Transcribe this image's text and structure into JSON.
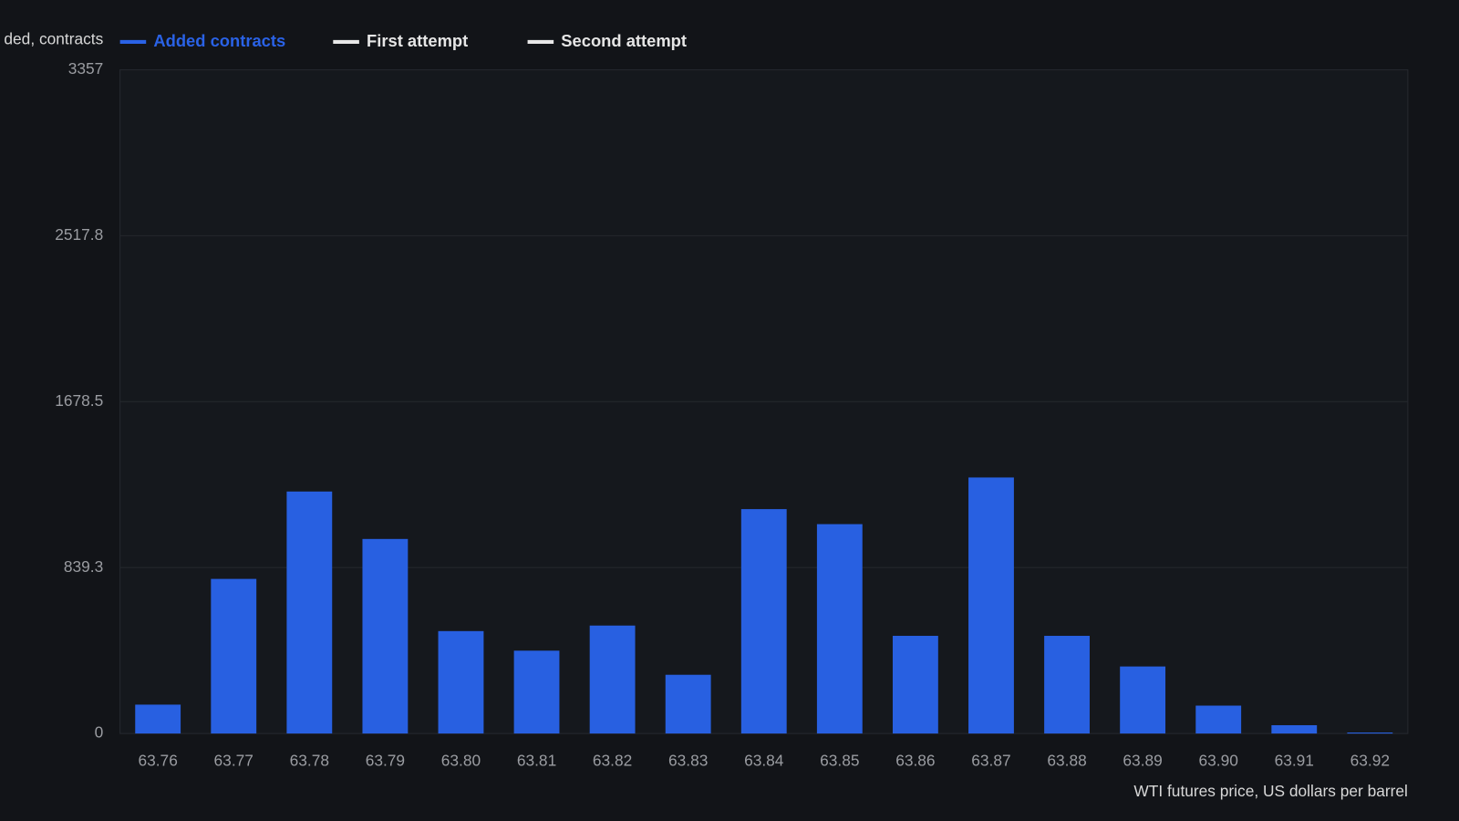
{
  "chart_data": {
    "type": "bar",
    "ylabel": "ded, contracts",
    "xlabel": "WTI futures price, US dollars per barrel",
    "legend": [
      {
        "name": "Added contracts",
        "color": "#2a62e6"
      },
      {
        "name": "First attempt",
        "color": "#e8e8e8"
      },
      {
        "name": "Second attempt",
        "color": "#e8e8e8"
      }
    ],
    "categories": [
      "63.76",
      "63.77",
      "63.78",
      "63.79",
      "63.80",
      "63.81",
      "63.82",
      "63.83",
      "63.84",
      "63.85",
      "63.86",
      "63.87",
      "63.88",
      "63.89",
      "63.90",
      "63.91",
      "63.92"
    ],
    "values": [
      146,
      782,
      1224,
      984,
      518,
      419,
      546,
      297,
      1135,
      1059,
      494,
      1295,
      494,
      339,
      141,
      42,
      5
    ],
    "color": "#2860e1",
    "ylim": [
      0,
      3357
    ],
    "yticks": [
      0,
      839.3,
      1678.5,
      2517.8,
      3357
    ],
    "grid": true
  }
}
